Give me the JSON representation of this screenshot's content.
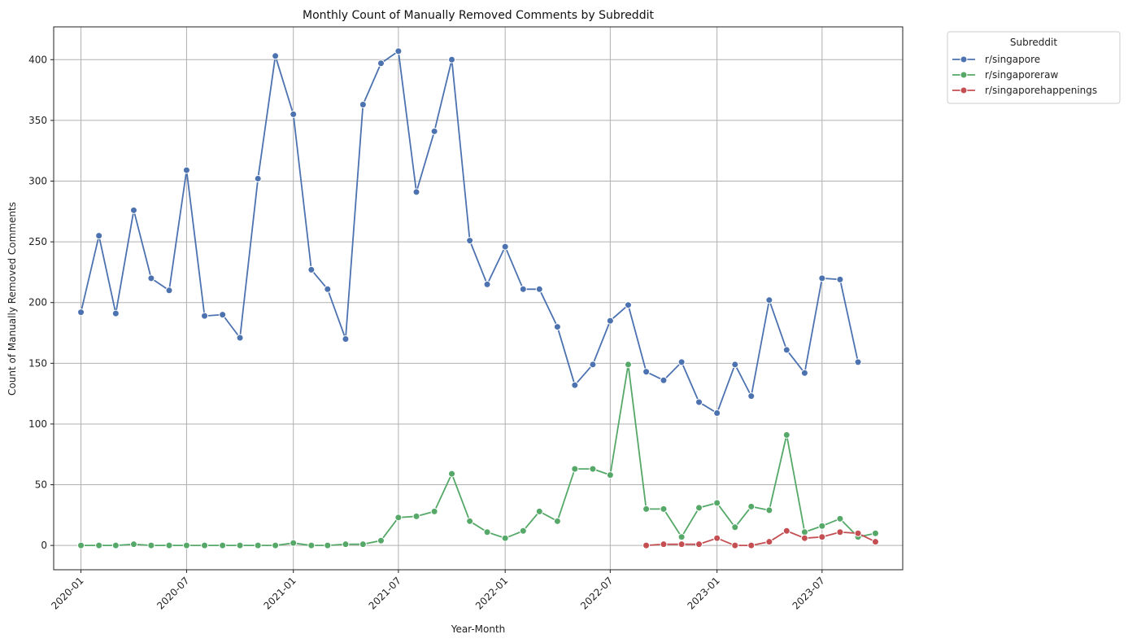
{
  "chart_data": {
    "type": "line",
    "title": "Monthly Count of Manually Removed Comments by Subreddit",
    "xlabel": "Year-Month",
    "ylabel": "Count of Manually Removed Comments",
    "ylim": [
      -20,
      427
    ],
    "xlim": [
      "2019-11-15",
      "2023-11-17"
    ],
    "grid": true,
    "legend": {
      "title": "Subreddit",
      "placement": "outside-top-right"
    },
    "x_ticks": [
      "2020-01",
      "2020-07",
      "2021-01",
      "2021-07",
      "2022-01",
      "2022-07",
      "2023-01",
      "2023-07"
    ],
    "y_ticks": [
      0,
      50,
      100,
      150,
      200,
      250,
      300,
      350,
      400
    ],
    "series": [
      {
        "name": "r/singapore",
        "color": "#4c72b0",
        "x": [
          "2020-01",
          "2020-02",
          "2020-03",
          "2020-04",
          "2020-05",
          "2020-06",
          "2020-07",
          "2020-08",
          "2020-09",
          "2020-10",
          "2020-11",
          "2020-12",
          "2021-01",
          "2021-02",
          "2021-03",
          "2021-04",
          "2021-05",
          "2021-06",
          "2021-07",
          "2021-08",
          "2021-09",
          "2021-10",
          "2021-11",
          "2021-12",
          "2022-01",
          "2022-02",
          "2022-03",
          "2022-04",
          "2022-05",
          "2022-06",
          "2022-07",
          "2022-08",
          "2022-09",
          "2022-10",
          "2022-11",
          "2022-12",
          "2023-01",
          "2023-02",
          "2023-03",
          "2023-04",
          "2023-05",
          "2023-06",
          "2023-07",
          "2023-08",
          "2023-09"
        ],
        "values": [
          192,
          255,
          191,
          276,
          220,
          210,
          309,
          189,
          190,
          171,
          302,
          403,
          355,
          227,
          211,
          170,
          363,
          397,
          407,
          291,
          341,
          400,
          251,
          215,
          246,
          211,
          211,
          180,
          132,
          149,
          185,
          198,
          143,
          136,
          151,
          118,
          109,
          149,
          123,
          202,
          161,
          142,
          220,
          219,
          151
        ]
      },
      {
        "name": "r/singaporeraw",
        "color": "#55a868",
        "x": [
          "2020-01",
          "2020-02",
          "2020-03",
          "2020-04",
          "2020-05",
          "2020-06",
          "2020-07",
          "2020-08",
          "2020-09",
          "2020-10",
          "2020-11",
          "2020-12",
          "2021-01",
          "2021-02",
          "2021-03",
          "2021-04",
          "2021-05",
          "2021-06",
          "2021-07",
          "2021-08",
          "2021-09",
          "2021-10",
          "2021-11",
          "2021-12",
          "2022-01",
          "2022-02",
          "2022-03",
          "2022-04",
          "2022-05",
          "2022-06",
          "2022-07",
          "2022-08",
          "2022-09",
          "2022-10",
          "2022-11",
          "2022-12",
          "2023-01",
          "2023-02",
          "2023-03",
          "2023-04",
          "2023-05",
          "2023-06",
          "2023-07",
          "2023-08",
          "2023-09",
          "2023-10"
        ],
        "values": [
          0,
          0,
          0,
          1,
          0,
          0,
          0,
          0,
          0,
          0,
          0,
          0,
          2,
          0,
          0,
          1,
          1,
          4,
          23,
          24,
          28,
          59,
          20,
          11,
          6,
          12,
          28,
          20,
          63,
          63,
          58,
          149,
          30,
          30,
          7,
          31,
          35,
          15,
          32,
          29,
          91,
          11,
          16,
          22,
          7,
          10
        ]
      },
      {
        "name": "r/singaporehappenings",
        "color": "#c44e52",
        "x": [
          "2022-09",
          "2022-10",
          "2022-11",
          "2022-12",
          "2023-01",
          "2023-02",
          "2023-03",
          "2023-04",
          "2023-05",
          "2023-06",
          "2023-07",
          "2023-08",
          "2023-09",
          "2023-10"
        ],
        "values": [
          0,
          1,
          1,
          1,
          6,
          0,
          0,
          3,
          12,
          6,
          7,
          11,
          10,
          3
        ]
      }
    ]
  }
}
